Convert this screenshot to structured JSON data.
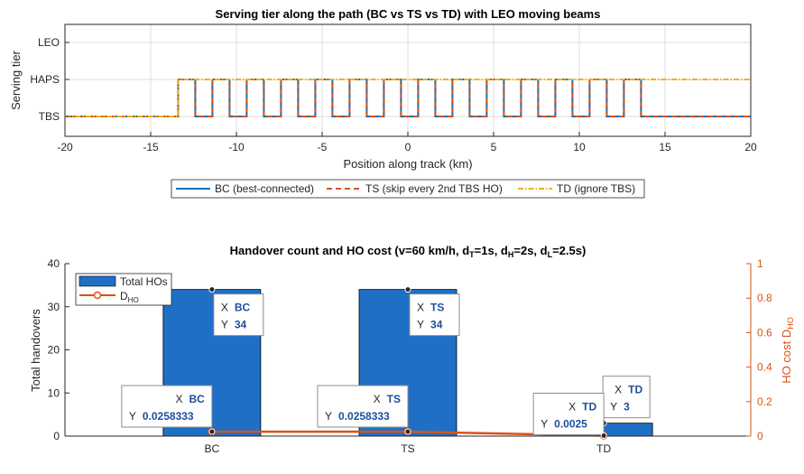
{
  "chart_data": [
    {
      "type": "line",
      "title": "Serving tier along the path (BC vs TS vs TD) with LEO moving beams",
      "xlabel": "Position along track (km)",
      "ylabel": "Serving tier",
      "xlim": [
        -20,
        20
      ],
      "xticks": [
        "-20",
        "-15",
        "-10",
        "-5",
        "0",
        "5",
        "10",
        "15",
        "20"
      ],
      "yticks": [
        "TBS",
        "HAPS",
        "LEO"
      ],
      "grid": true,
      "legend_position": "bottom-outside",
      "series": [
        {
          "name": "BC (best-connected)",
          "color": "#0072BD",
          "style": "solid",
          "x": [
            -20,
            -13.4,
            -13.4,
            -12.4,
            -12.4,
            -11.4,
            -11.4,
            -10.4,
            -10.4,
            -9.4,
            -9.4,
            -8.4,
            -8.4,
            -7.4,
            -7.4,
            -6.4,
            -6.4,
            -5.4,
            -5.4,
            -4.4,
            -4.4,
            -3.4,
            -3.4,
            -2.4,
            -2.4,
            -1.4,
            -1.4,
            -0.4,
            -0.4,
            0.6,
            0.6,
            1.6,
            1.6,
            2.6,
            2.6,
            3.6,
            3.6,
            4.6,
            4.6,
            5.6,
            5.6,
            6.6,
            6.6,
            7.6,
            7.6,
            8.6,
            8.6,
            9.6,
            9.6,
            10.6,
            10.6,
            11.6,
            11.6,
            12.6,
            12.6,
            13.6,
            13.6,
            20
          ],
          "y": [
            "TBS",
            "TBS",
            "HAPS",
            "HAPS",
            "TBS",
            "TBS",
            "HAPS",
            "HAPS",
            "TBS",
            "TBS",
            "HAPS",
            "HAPS",
            "TBS",
            "TBS",
            "HAPS",
            "HAPS",
            "TBS",
            "TBS",
            "HAPS",
            "HAPS",
            "TBS",
            "TBS",
            "HAPS",
            "HAPS",
            "TBS",
            "TBS",
            "HAPS",
            "HAPS",
            "TBS",
            "TBS",
            "HAPS",
            "HAPS",
            "TBS",
            "TBS",
            "HAPS",
            "HAPS",
            "TBS",
            "TBS",
            "HAPS",
            "HAPS",
            "TBS",
            "TBS",
            "HAPS",
            "HAPS",
            "TBS",
            "TBS",
            "HAPS",
            "HAPS",
            "TBS",
            "TBS",
            "HAPS",
            "HAPS",
            "TBS",
            "TBS",
            "HAPS",
            "HAPS",
            "TBS",
            "TBS"
          ]
        },
        {
          "name": "TS (skip every 2nd TBS HO)",
          "color": "#D95319",
          "style": "dashed",
          "x": [
            -20,
            -13.4,
            -13.4,
            -12.4,
            -12.4,
            -11.4,
            -11.4,
            -10.4,
            -10.4,
            -9.4,
            -9.4,
            -8.4,
            -8.4,
            -7.4,
            -7.4,
            -6.4,
            -6.4,
            -5.4,
            -5.4,
            -4.4,
            -4.4,
            -3.4,
            -3.4,
            -2.4,
            -2.4,
            -1.4,
            -1.4,
            -0.4,
            -0.4,
            0.6,
            0.6,
            1.6,
            1.6,
            2.6,
            2.6,
            3.6,
            3.6,
            4.6,
            4.6,
            5.6,
            5.6,
            6.6,
            6.6,
            7.6,
            7.6,
            8.6,
            8.6,
            9.6,
            9.6,
            10.6,
            10.6,
            11.6,
            11.6,
            12.6,
            12.6,
            13.6,
            13.6,
            20
          ],
          "y": [
            "TBS",
            "TBS",
            "HAPS",
            "HAPS",
            "TBS",
            "TBS",
            "HAPS",
            "HAPS",
            "TBS",
            "TBS",
            "HAPS",
            "HAPS",
            "TBS",
            "TBS",
            "HAPS",
            "HAPS",
            "TBS",
            "TBS",
            "HAPS",
            "HAPS",
            "TBS",
            "TBS",
            "HAPS",
            "HAPS",
            "TBS",
            "TBS",
            "HAPS",
            "HAPS",
            "TBS",
            "TBS",
            "HAPS",
            "HAPS",
            "TBS",
            "TBS",
            "HAPS",
            "HAPS",
            "TBS",
            "TBS",
            "HAPS",
            "HAPS",
            "TBS",
            "TBS",
            "HAPS",
            "HAPS",
            "TBS",
            "TBS",
            "HAPS",
            "HAPS",
            "TBS",
            "TBS",
            "HAPS",
            "HAPS",
            "TBS",
            "TBS",
            "HAPS",
            "HAPS",
            "TBS",
            "TBS"
          ]
        },
        {
          "name": "TD (ignore TBS)",
          "color": "#EDB120",
          "style": "dashdot",
          "x": [
            -20,
            -13.4,
            -13.4,
            20
          ],
          "y": [
            "TBS",
            "TBS",
            "HAPS",
            "HAPS"
          ]
        }
      ]
    },
    {
      "type": "bar",
      "title": "Handover  count  and  HO  cost  (v=60  km/h,  dT=1s,  dH=2s,  dL=2.5s)",
      "title_parts": [
        "Handover  count  and  HO  cost  (v=60  km/h,  d",
        "T",
        "=1s,  d",
        "H",
        "=2s,  d",
        "L",
        "=2.5s)"
      ],
      "categories": [
        "BC",
        "TS",
        "TD"
      ],
      "ylabel": "Total handovers",
      "ylabel_right": "HO  cost  D",
      "ylabel_right_sub": "HO",
      "ylim": [
        0,
        40
      ],
      "ylim_right": [
        0,
        1
      ],
      "yticks": [
        "0",
        "10",
        "20",
        "30",
        "40"
      ],
      "yticks_right": [
        "0",
        "0.2",
        "0.4",
        "0.6",
        "0.8",
        "1"
      ],
      "grid": false,
      "legend_position": "top-left",
      "series": [
        {
          "name": "Total HOs",
          "type": "bar",
          "color": "#1F6FC6",
          "axis": "left",
          "values": [
            34,
            34,
            3
          ]
        },
        {
          "name": "D",
          "name_sub": "HO",
          "type": "line",
          "color": "#D95319",
          "axis": "right",
          "values": [
            0.0258333,
            0.0258333,
            0.0025
          ]
        }
      ],
      "datatips": [
        {
          "x": "BC",
          "y": "34"
        },
        {
          "x": "TS",
          "y": "34"
        },
        {
          "x": "TD",
          "y": "3"
        },
        {
          "x": "BC",
          "y": "0.0258333"
        },
        {
          "x": "TS",
          "y": "0.0258333"
        },
        {
          "x": "TD",
          "y": "0.0025"
        }
      ],
      "datatip_labels": {
        "x": "X",
        "y": "Y"
      }
    }
  ]
}
